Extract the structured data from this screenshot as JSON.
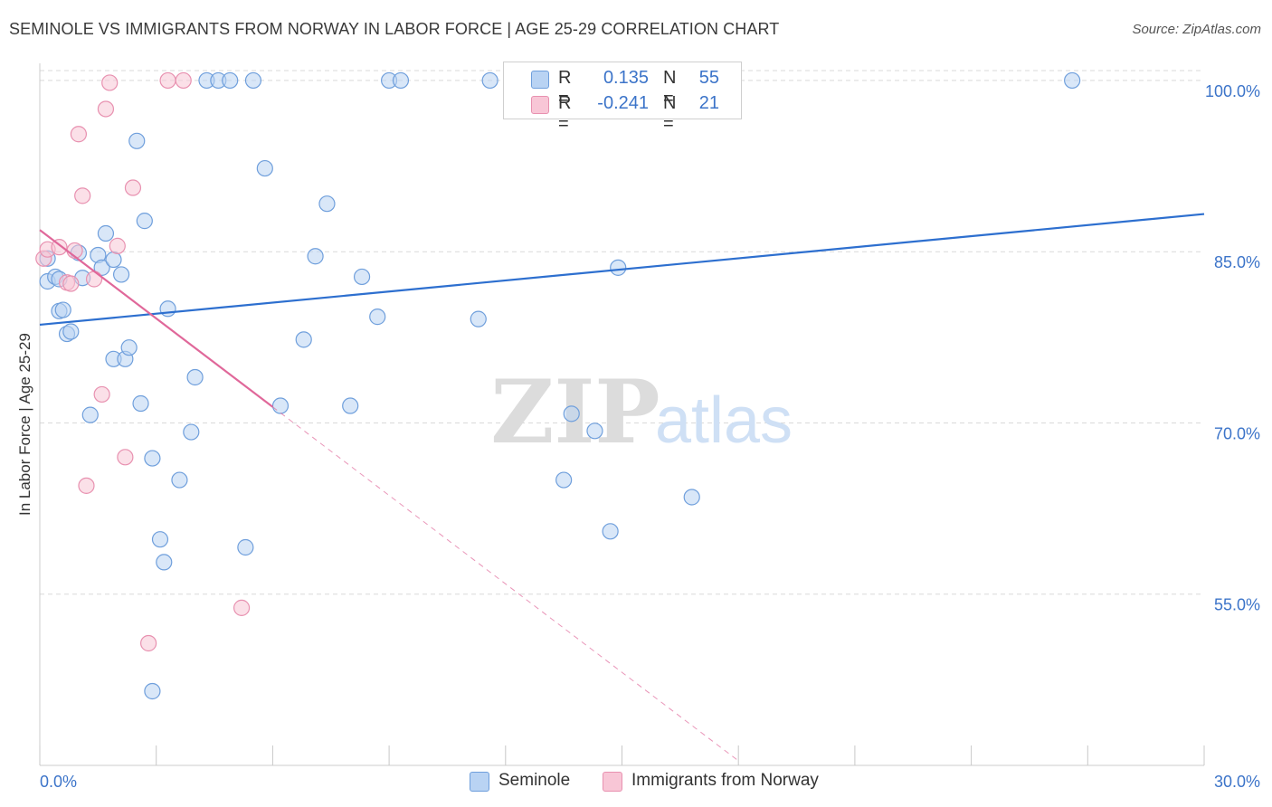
{
  "header": {
    "title": "SEMINOLE VS IMMIGRANTS FROM NORWAY IN LABOR FORCE | AGE 25-29 CORRELATION CHART",
    "source": "Source: ZipAtlas.com"
  },
  "legend": {
    "rows": [
      {
        "r_label": "R =",
        "r_value": "0.135",
        "n_label": "N =",
        "n_value": "55"
      },
      {
        "r_label": "R =",
        "r_value": "-0.241",
        "n_label": "N =",
        "n_value": "21"
      }
    ]
  },
  "bottom_legend": {
    "items": [
      {
        "label": "Seminole"
      },
      {
        "label": "Immigrants from Norway"
      }
    ]
  },
  "watermark": {
    "zip": "ZIP",
    "atlas": "atlas"
  },
  "colors": {
    "blue_fill": "#b9d3f3",
    "blue_stroke": "#6f9fdc",
    "blue_line": "#2d6fcf",
    "pink_fill": "#f8c6d6",
    "pink_stroke": "#e891b0",
    "pink_line": "#e0689a",
    "tick_text": "#3c74c9",
    "grid": "#d9d9d9"
  },
  "chart_data": {
    "type": "scatter",
    "title": "SEMINOLE VS IMMIGRANTS FROM NORWAY IN LABOR FORCE | AGE 25-29 CORRELATION CHART",
    "xlabel": "",
    "ylabel": "In Labor Force | Age 25-29",
    "xlim": [
      0,
      30
    ],
    "ylim": [
      40,
      101.5
    ],
    "x_tick_labels": [
      {
        "value": 0,
        "label": "0.0%"
      },
      {
        "value": 30,
        "label": "30.0%"
      }
    ],
    "y_tick_labels": [
      {
        "value": 100,
        "label": "100.0%"
      },
      {
        "value": 85,
        "label": "85.0%"
      },
      {
        "value": 70,
        "label": "70.0%"
      },
      {
        "value": 55,
        "label": "55.0%"
      }
    ],
    "grid": true,
    "legend_position": "top-center",
    "series": [
      {
        "name": "Seminole",
        "color": "#6f9fdc",
        "trend": {
          "x": [
            0,
            30
          ],
          "y": [
            78.6,
            88.3
          ]
        },
        "points": [
          [
            0.2,
            84.4
          ],
          [
            0.2,
            82.4
          ],
          [
            0.4,
            82.8
          ],
          [
            0.5,
            82.6
          ],
          [
            0.5,
            79.8
          ],
          [
            0.6,
            79.9
          ],
          [
            0.7,
            77.8
          ],
          [
            0.8,
            78.0
          ],
          [
            1.0,
            84.9
          ],
          [
            1.1,
            82.7
          ],
          [
            1.3,
            70.7
          ],
          [
            1.5,
            84.7
          ],
          [
            1.6,
            83.6
          ],
          [
            1.7,
            86.6
          ],
          [
            1.9,
            84.3
          ],
          [
            1.9,
            75.6
          ],
          [
            2.1,
            83.0
          ],
          [
            2.2,
            75.6
          ],
          [
            2.3,
            76.6
          ],
          [
            2.5,
            94.7
          ],
          [
            2.6,
            71.7
          ],
          [
            2.7,
            87.7
          ],
          [
            2.9,
            46.5
          ],
          [
            2.9,
            66.9
          ],
          [
            3.1,
            59.8
          ],
          [
            3.2,
            57.8
          ],
          [
            3.3,
            80.0
          ],
          [
            3.6,
            65.0
          ],
          [
            3.9,
            69.2
          ],
          [
            4.0,
            74.0
          ],
          [
            4.3,
            100.0
          ],
          [
            4.6,
            100.0
          ],
          [
            4.9,
            100.0
          ],
          [
            5.5,
            100.0
          ],
          [
            5.8,
            92.3
          ],
          [
            5.3,
            59.1
          ],
          [
            6.2,
            71.5
          ],
          [
            6.8,
            77.3
          ],
          [
            7.1,
            84.6
          ],
          [
            7.4,
            89.2
          ],
          [
            8.0,
            71.5
          ],
          [
            8.3,
            82.8
          ],
          [
            8.7,
            79.3
          ],
          [
            9.0,
            100.0
          ],
          [
            9.3,
            100.0
          ],
          [
            11.3,
            79.1
          ],
          [
            11.6,
            100.0
          ],
          [
            13.5,
            65.0
          ],
          [
            13.7,
            70.8
          ],
          [
            14.3,
            69.3
          ],
          [
            14.7,
            60.5
          ],
          [
            14.9,
            83.6
          ],
          [
            15.8,
            100.0
          ],
          [
            16.8,
            63.5
          ],
          [
            26.6,
            100.0
          ]
        ]
      },
      {
        "name": "Immigrants from Norway",
        "color": "#e891b0",
        "trend": {
          "x": [
            0,
            6.0
          ],
          "y": [
            86.9,
            71.4
          ]
        },
        "trend_extension": {
          "x": [
            6.0,
            18.0
          ],
          "y": [
            71.4,
            40.4
          ]
        },
        "points": [
          [
            0.1,
            84.4
          ],
          [
            0.2,
            85.2
          ],
          [
            0.5,
            85.4
          ],
          [
            0.7,
            82.3
          ],
          [
            0.8,
            82.2
          ],
          [
            0.9,
            85.1
          ],
          [
            1.0,
            95.3
          ],
          [
            1.1,
            89.9
          ],
          [
            1.2,
            64.5
          ],
          [
            1.4,
            82.6
          ],
          [
            1.6,
            72.5
          ],
          [
            1.7,
            97.5
          ],
          [
            1.8,
            99.8
          ],
          [
            2.0,
            85.5
          ],
          [
            2.2,
            67.0
          ],
          [
            2.4,
            90.6
          ],
          [
            2.8,
            50.7
          ],
          [
            3.3,
            100.0
          ],
          [
            3.7,
            100.0
          ],
          [
            5.2,
            53.8
          ],
          [
            15.7,
            100.0
          ]
        ]
      }
    ]
  }
}
